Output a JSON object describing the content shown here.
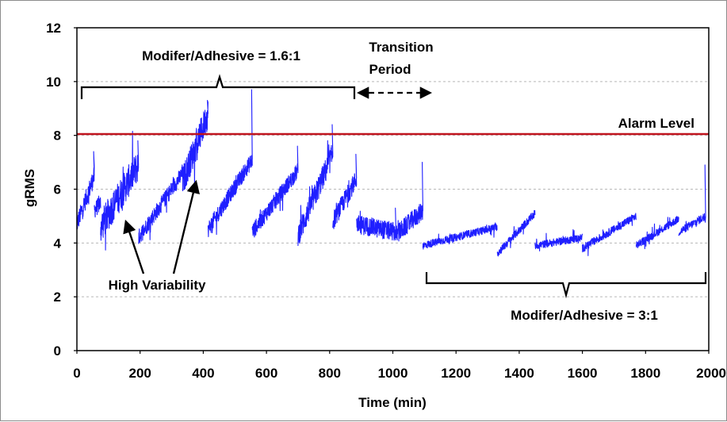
{
  "chart_data": {
    "type": "line",
    "title": "",
    "xlabel": "Time (min)",
    "ylabel": "gRMS",
    "xlim": [
      0,
      2000
    ],
    "ylim": [
      0,
      12
    ],
    "x_ticks": [
      0,
      200,
      400,
      600,
      800,
      1000,
      1200,
      1400,
      1600,
      1800,
      2000
    ],
    "y_ticks": [
      0,
      2,
      4,
      6,
      8,
      10,
      12
    ],
    "grid": "horizontal dashed",
    "series_color": "#1f1fff",
    "alarm_level": {
      "label": "Alarm Level",
      "value": 8.05,
      "color": "#c0141e"
    },
    "segments": [
      {
        "x0": 0,
        "x1": 55,
        "y0": 4.7,
        "y1": 6.5,
        "noise": 0.35,
        "spike": 7.4
      },
      {
        "x0": 55,
        "x1": 75,
        "y0": 5.2,
        "y1": 5.5,
        "noise": 0.3,
        "spike": 0
      },
      {
        "x0": 75,
        "x1": 195,
        "y0": 4.6,
        "y1": 6.9,
        "noise": 0.6,
        "spike": 7.8
      },
      {
        "x0": 195,
        "x1": 335,
        "y0": 4.2,
        "y1": 6.6,
        "noise": 0.3,
        "spike": 6.9
      },
      {
        "x0": 335,
        "x1": 415,
        "y0": 6.3,
        "y1": 8.8,
        "noise": 0.55,
        "spike": 9.3
      },
      {
        "x0": 415,
        "x1": 555,
        "y0": 4.5,
        "y1": 7.1,
        "noise": 0.3,
        "spike": 9.7
      },
      {
        "x0": 555,
        "x1": 700,
        "y0": 4.4,
        "y1": 6.7,
        "noise": 0.3,
        "spike": 7.6
      },
      {
        "x0": 700,
        "x1": 810,
        "y0": 4.3,
        "y1": 7.3,
        "noise": 0.45,
        "spike": 8.4
      },
      {
        "x0": 810,
        "x1": 885,
        "y0": 4.8,
        "y1": 6.4,
        "noise": 0.35,
        "spike": 7.3
      },
      {
        "x0": 885,
        "x1": 1010,
        "y0": 4.7,
        "y1": 4.4,
        "noise": 0.35,
        "spike": 5.3
      },
      {
        "x0": 1010,
        "x1": 1095,
        "y0": 4.3,
        "y1": 5.2,
        "noise": 0.35,
        "spike": 7.0
      },
      {
        "x0": 1095,
        "x1": 1330,
        "y0": 3.9,
        "y1": 4.6,
        "noise": 0.14,
        "spike": 0
      },
      {
        "x0": 1330,
        "x1": 1450,
        "y0": 3.6,
        "y1": 5.1,
        "noise": 0.15,
        "spike": 0
      },
      {
        "x0": 1450,
        "x1": 1600,
        "y0": 3.9,
        "y1": 4.2,
        "noise": 0.14,
        "spike": 0
      },
      {
        "x0": 1600,
        "x1": 1770,
        "y0": 3.8,
        "y1": 5.0,
        "noise": 0.15,
        "spike": 0
      },
      {
        "x0": 1770,
        "x1": 1905,
        "y0": 3.9,
        "y1": 4.9,
        "noise": 0.14,
        "spike": 0
      },
      {
        "x0": 1905,
        "x1": 1990,
        "y0": 4.4,
        "y1": 5.0,
        "noise": 0.15,
        "spike": 6.9
      }
    ],
    "annotations": {
      "top_bracket_label": "Modifer/Adhesive = 1.6:1",
      "transition_line1": "Transition",
      "transition_line2": "Period",
      "bottom_bracket_label": "Modifer/Adhesive = 3:1",
      "variability_label": "High Variability"
    }
  }
}
